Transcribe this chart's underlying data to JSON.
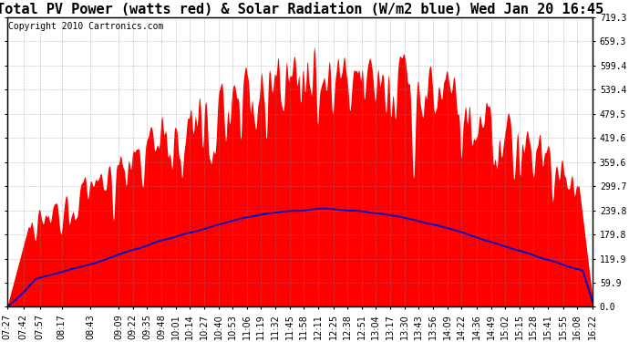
{
  "title": "Total PV Power (watts red) & Solar Radiation (W/m2 blue) Wed Jan 20 16:45",
  "copyright": "Copyright 2010 Cartronics.com",
  "bg_color": "#ffffff",
  "plot_bg_color": "#ffffff",
  "grid_color": "#888888",
  "yticks": [
    0.0,
    59.9,
    119.9,
    179.8,
    239.8,
    299.7,
    359.6,
    419.6,
    479.5,
    539.4,
    599.4,
    659.3,
    719.3
  ],
  "ymin": 0.0,
  "ymax": 719.3,
  "xtick_labels": [
    "07:27",
    "07:42",
    "07:57",
    "08:17",
    "08:43",
    "09:09",
    "09:22",
    "09:35",
    "09:48",
    "10:01",
    "10:14",
    "10:27",
    "10:40",
    "10:53",
    "11:06",
    "11:19",
    "11:32",
    "11:45",
    "11:58",
    "12:11",
    "12:25",
    "12:38",
    "12:51",
    "13:04",
    "13:17",
    "13:30",
    "13:43",
    "13:56",
    "14:09",
    "14:22",
    "14:36",
    "14:49",
    "15:02",
    "15:15",
    "15:28",
    "15:41",
    "15:55",
    "16:08",
    "16:22"
  ],
  "red_color": "#ff0000",
  "blue_color": "#0000cc",
  "title_fontsize": 11,
  "copyright_fontsize": 7,
  "tick_fontsize": 7,
  "figsize": [
    6.9,
    3.75
  ],
  "dpi": 100
}
